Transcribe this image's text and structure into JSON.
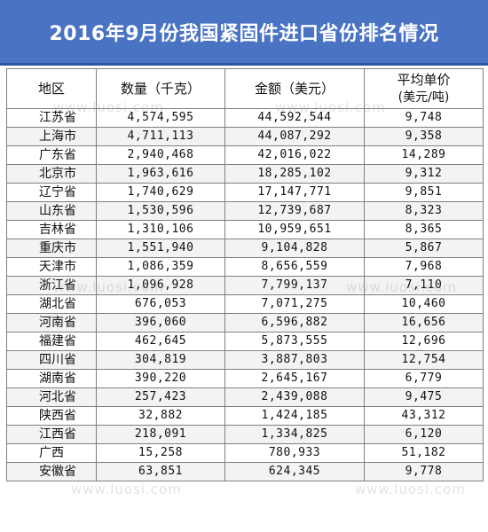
{
  "title": "2016年9月份我国紧固件进口省份排名情况",
  "headers": {
    "region": "地区",
    "quantity": "数量（千克）",
    "amount": "金额（美元）",
    "avg_price": "平均单价",
    "avg_price_unit": "(美元/吨)"
  },
  "watermark": "www.luosi.com",
  "rows": [
    {
      "region": "江苏省",
      "quantity": "4,574,595",
      "amount": "44,592,544",
      "price": "9,748"
    },
    {
      "region": "上海市",
      "quantity": "4,711,113",
      "amount": "44,087,292",
      "price": "9,358"
    },
    {
      "region": "广东省",
      "quantity": "2,940,468",
      "amount": "42,016,022",
      "price": "14,289"
    },
    {
      "region": "北京市",
      "quantity": "1,963,616",
      "amount": "18,285,102",
      "price": "9,312"
    },
    {
      "region": "辽宁省",
      "quantity": "1,740,629",
      "amount": "17,147,771",
      "price": "9,851"
    },
    {
      "region": "山东省",
      "quantity": "1,530,596",
      "amount": "12,739,687",
      "price": "8,323"
    },
    {
      "region": "吉林省",
      "quantity": "1,310,106",
      "amount": "10,959,651",
      "price": "8,365"
    },
    {
      "region": "重庆市",
      "quantity": "1,551,940",
      "amount": "9,104,828",
      "price": "5,867"
    },
    {
      "region": "天津市",
      "quantity": "1,086,359",
      "amount": "8,656,559",
      "price": "7,968"
    },
    {
      "region": "浙江省",
      "quantity": "1,096,928",
      "amount": "7,799,137",
      "price": "7,110"
    },
    {
      "region": "湖北省",
      "quantity": "676,053",
      "amount": "7,071,275",
      "price": "10,460"
    },
    {
      "region": "河南省",
      "quantity": "396,060",
      "amount": "6,596,882",
      "price": "16,656"
    },
    {
      "region": "福建省",
      "quantity": "462,645",
      "amount": "5,873,555",
      "price": "12,696"
    },
    {
      "region": "四川省",
      "quantity": "304,819",
      "amount": "3,887,803",
      "price": "12,754"
    },
    {
      "region": "湖南省",
      "quantity": "390,220",
      "amount": "2,645,167",
      "price": "6,779"
    },
    {
      "region": "河北省",
      "quantity": "257,423",
      "amount": "2,439,088",
      "price": "9,475"
    },
    {
      "region": "陕西省",
      "quantity": "32,882",
      "amount": "1,424,185",
      "price": "43,312"
    },
    {
      "region": "江西省",
      "quantity": "218,091",
      "amount": "1,334,825",
      "price": "6,120"
    },
    {
      "region": "广西",
      "quantity": "15,258",
      "amount": "780,933",
      "price": "51,182"
    },
    {
      "region": "安徽省",
      "quantity": "63,851",
      "amount": "624,345",
      "price": "9,778"
    }
  ]
}
